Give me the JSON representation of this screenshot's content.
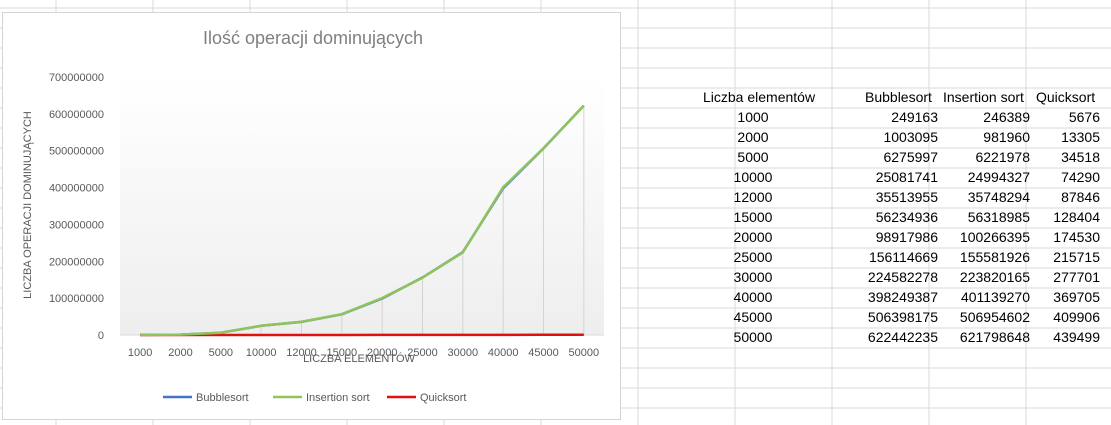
{
  "chart_data": {
    "type": "line",
    "title": "Ilość operacji dominujących",
    "xlabel": "LICZBA ELEMENTÓW",
    "ylabel": "LICZBA OPERACJI DOMINUJĄCYCH",
    "categories": [
      "1000",
      "2000",
      "5000",
      "10000",
      "12000",
      "15000",
      "20000",
      "25000",
      "30000",
      "40000",
      "45000",
      "50000"
    ],
    "ylim": [
      0,
      700000000
    ],
    "yticks": [
      "0",
      "100000000",
      "200000000",
      "300000000",
      "400000000",
      "500000000",
      "600000000",
      "700000000"
    ],
    "legend_position": "bottom",
    "series": [
      {
        "name": "Bubblesort",
        "color": "#4472c4",
        "values": [
          249163,
          1003095,
          6275997,
          25081741,
          35513955,
          56234936,
          98917986,
          156114669,
          224582278,
          398249387,
          506398175,
          622442235
        ]
      },
      {
        "name": "Insertion sort",
        "color": "#8fc45b",
        "values": [
          246389,
          981960,
          6221978,
          24994327,
          35748294,
          56318985,
          100266395,
          155581926,
          223820165,
          401139270,
          506954602,
          621798648
        ]
      },
      {
        "name": "Quicksort",
        "color": "#e01010",
        "values": [
          5676,
          13305,
          34518,
          74290,
          87846,
          128404,
          174530,
          215715,
          277701,
          369705,
          409906,
          439499
        ]
      }
    ]
  },
  "table": {
    "headers": [
      "Liczba elementów",
      "Bubblesort",
      "Insertion sort",
      "Quicksort"
    ],
    "rows": [
      [
        "1000",
        "249163",
        "246389",
        "5676"
      ],
      [
        "2000",
        "1003095",
        "981960",
        "13305"
      ],
      [
        "5000",
        "6275997",
        "6221978",
        "34518"
      ],
      [
        "10000",
        "25081741",
        "24994327",
        "74290"
      ],
      [
        "12000",
        "35513955",
        "35748294",
        "87846"
      ],
      [
        "15000",
        "56234936",
        "56318985",
        "128404"
      ],
      [
        "20000",
        "98917986",
        "100266395",
        "174530"
      ],
      [
        "25000",
        "156114669",
        "155581926",
        "215715"
      ],
      [
        "30000",
        "224582278",
        "223820165",
        "277701"
      ],
      [
        "40000",
        "398249387",
        "401139270",
        "369705"
      ],
      [
        "45000",
        "506398175",
        "506954602",
        "409906"
      ],
      [
        "50000",
        "622442235",
        "621798648",
        "439499"
      ]
    ]
  }
}
